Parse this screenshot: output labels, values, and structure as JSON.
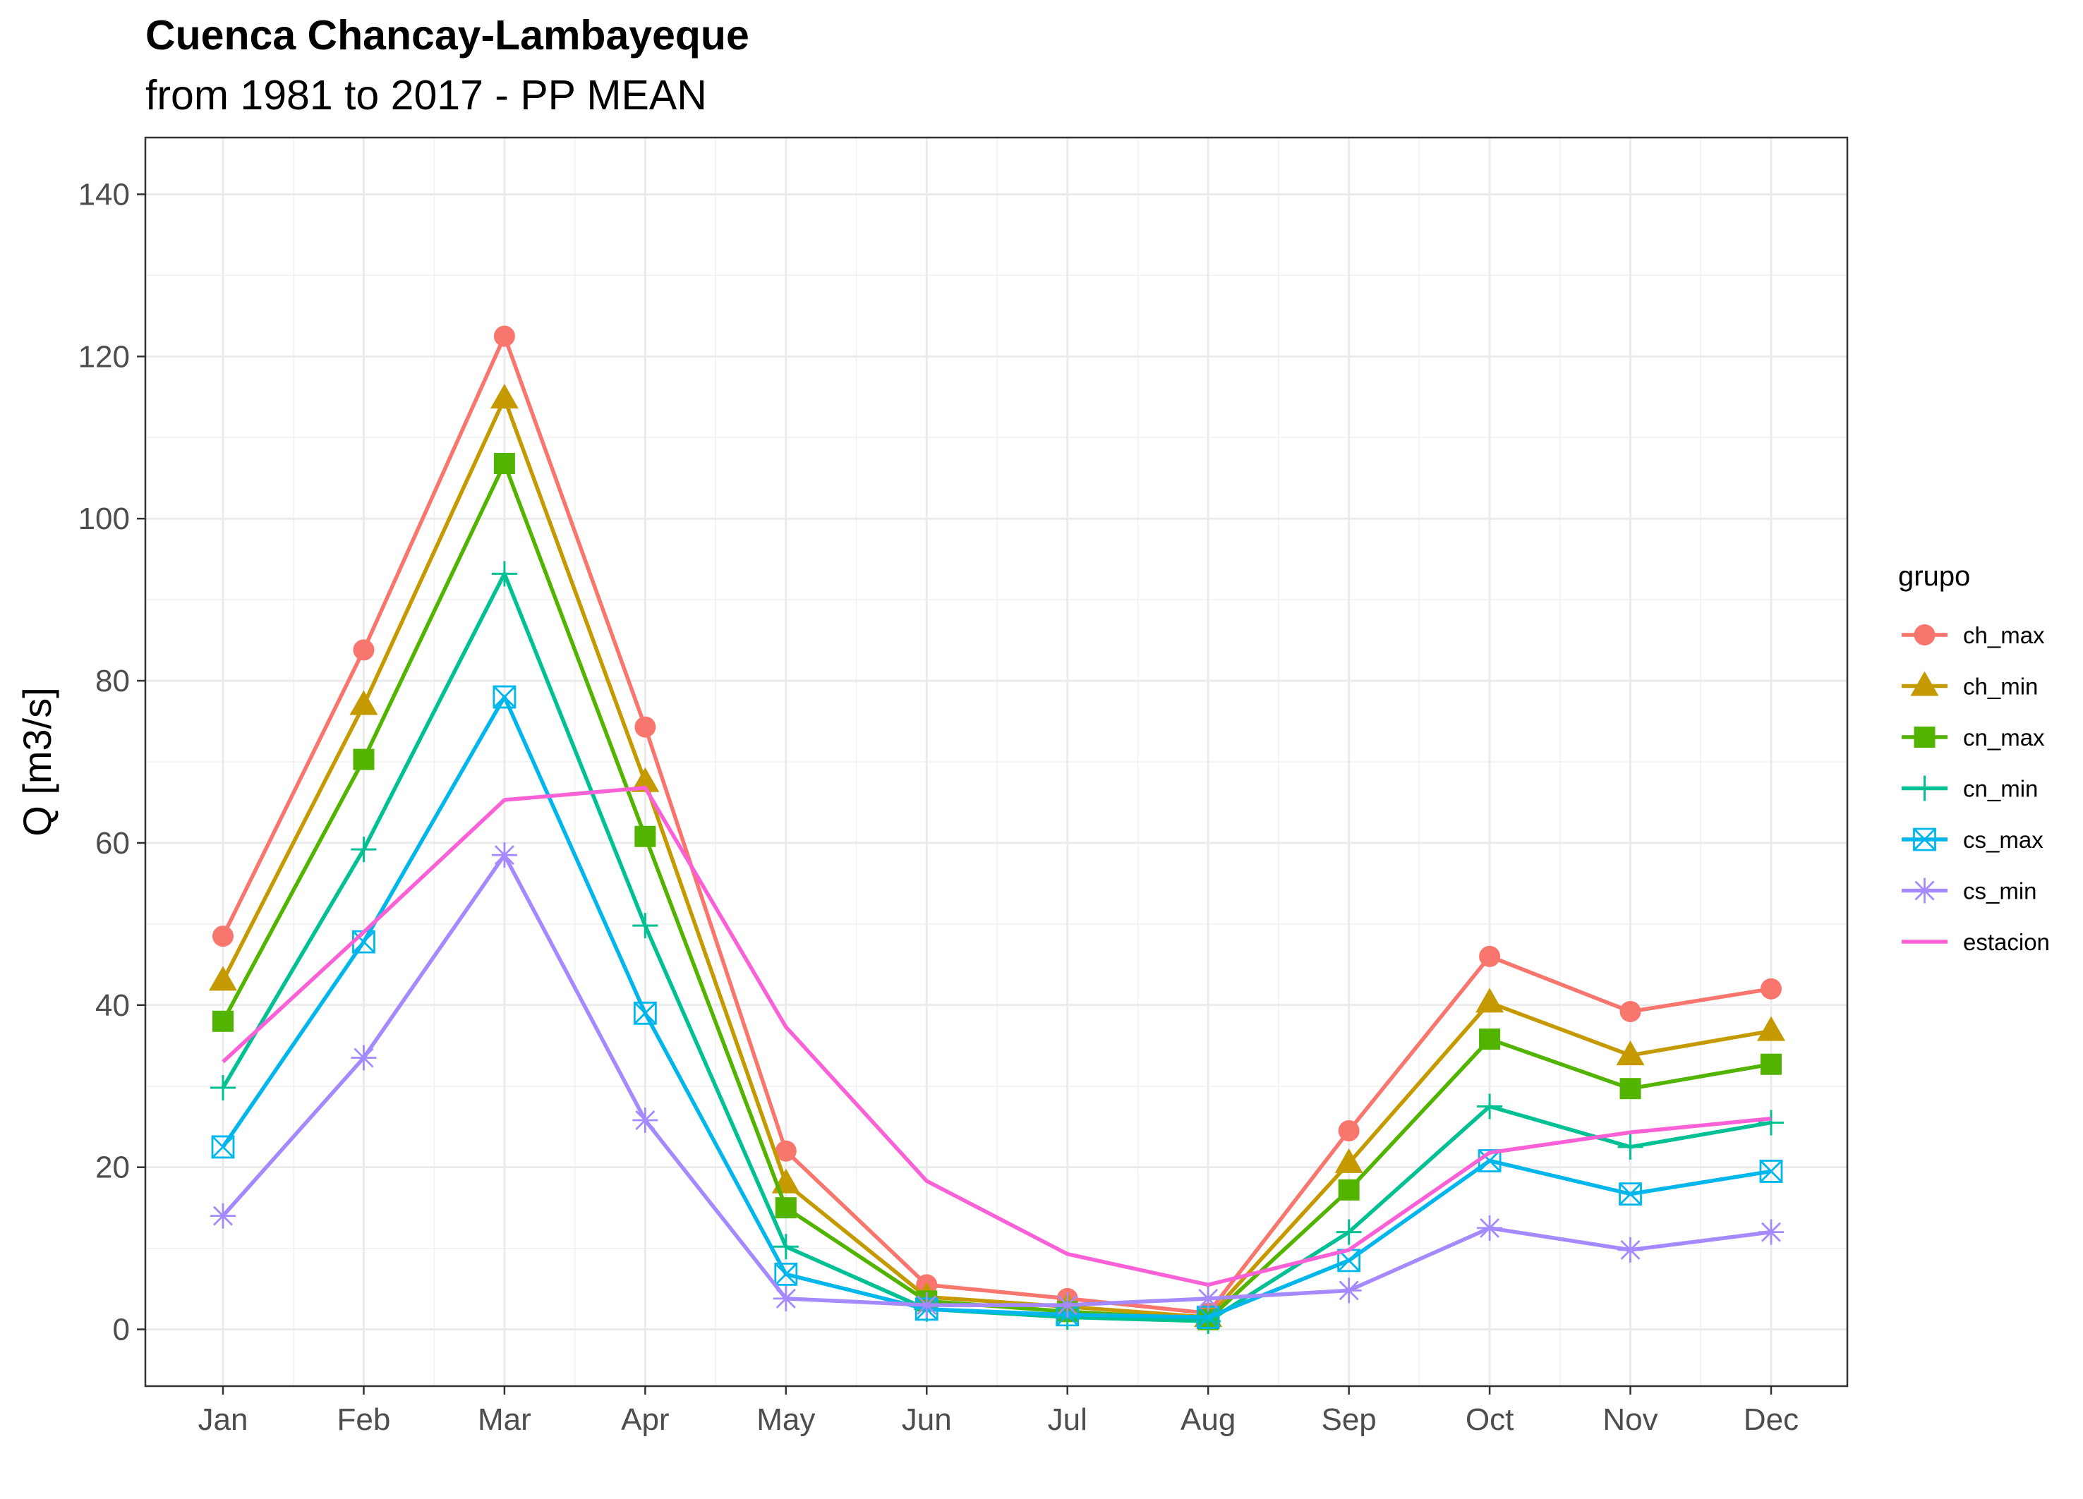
{
  "chart_data": {
    "type": "line",
    "title": "Cuenca Chancay-Lambayeque",
    "subtitle": "from 1981 to 2017 - PP MEAN",
    "xlabel": "",
    "ylabel": "Q [m3/s]",
    "categories": [
      "Jan",
      "Feb",
      "Mar",
      "Apr",
      "May",
      "Jun",
      "Jul",
      "Aug",
      "Sep",
      "Oct",
      "Nov",
      "Dec"
    ],
    "ylim": [
      -7,
      147
    ],
    "yticks": [
      0,
      20,
      40,
      60,
      80,
      100,
      120,
      140
    ],
    "y_tick_labels": [
      "0",
      "20",
      "40",
      "60",
      "80",
      "100",
      "120",
      "140"
    ],
    "grid": true,
    "legend": {
      "title": "grupo",
      "position": "right"
    },
    "series": [
      {
        "name": "ch_max",
        "color": "#F8766D",
        "marker": "circle",
        "values": [
          48.5,
          83.8,
          122.5,
          74.3,
          22.0,
          5.5,
          3.8,
          2.0,
          24.5,
          46.0,
          39.2,
          42.0
        ]
      },
      {
        "name": "ch_min",
        "color": "#C49A00",
        "marker": "triangle",
        "values": [
          43.0,
          77.0,
          114.8,
          67.5,
          18.0,
          4.0,
          2.8,
          1.5,
          20.5,
          40.3,
          33.8,
          36.8
        ]
      },
      {
        "name": "cn_max",
        "color": "#53B400",
        "marker": "square",
        "values": [
          38.0,
          70.3,
          106.8,
          60.8,
          15.0,
          3.5,
          2.2,
          1.2,
          17.2,
          35.8,
          29.7,
          32.7
        ]
      },
      {
        "name": "cn_min",
        "color": "#00C094",
        "marker": "plus",
        "values": [
          29.8,
          59.2,
          93.2,
          49.8,
          10.2,
          2.5,
          1.5,
          1.0,
          12.0,
          27.5,
          22.5,
          25.5
        ]
      },
      {
        "name": "cs_max",
        "color": "#00B6EB",
        "marker": "square-x",
        "values": [
          22.5,
          47.8,
          78.0,
          39.0,
          6.8,
          2.5,
          1.8,
          1.5,
          8.5,
          20.8,
          16.7,
          19.5
        ]
      },
      {
        "name": "cs_min",
        "color": "#A58AFF",
        "marker": "asterisk",
        "values": [
          14.0,
          33.5,
          58.5,
          25.8,
          3.8,
          3.0,
          3.0,
          3.8,
          4.8,
          12.5,
          9.8,
          12.0
        ]
      },
      {
        "name": "estacion",
        "color": "#FB61D7",
        "marker": "none",
        "values": [
          33.0,
          49.0,
          65.3,
          66.8,
          37.3,
          18.3,
          9.3,
          5.5,
          9.8,
          21.8,
          24.3,
          26.0
        ]
      }
    ]
  }
}
